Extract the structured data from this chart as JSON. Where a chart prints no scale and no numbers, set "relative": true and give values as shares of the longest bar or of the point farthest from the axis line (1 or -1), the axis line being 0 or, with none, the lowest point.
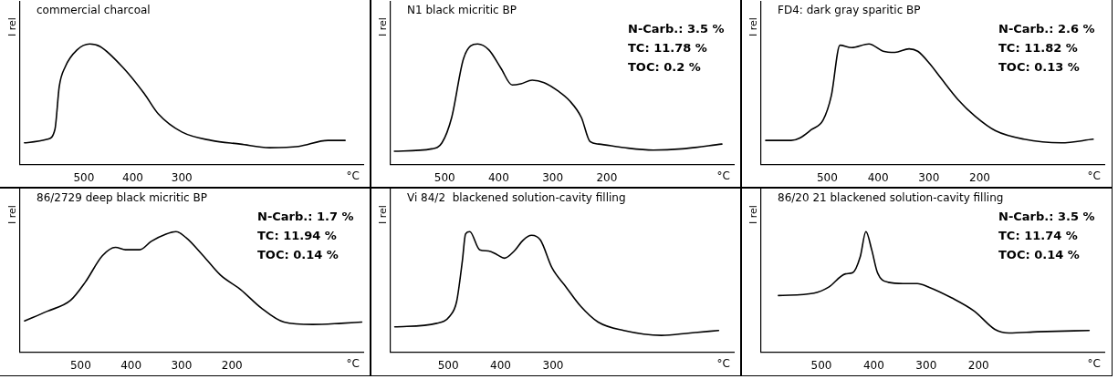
{
  "chart_data": [
    {
      "type": "line",
      "title": "commercial charcoal",
      "ylabel": "I rel",
      "xlabel": "°C",
      "relative": true,
      "xlim": [
        630,
        -70
      ],
      "xticks": [
        500,
        400,
        300
      ],
      "color": "#000000",
      "grid": false,
      "legend": false,
      "marker": "none",
      "x": [
        621,
        574,
        559,
        550,
        538,
        514,
        488,
        467,
        419,
        377,
        348,
        300,
        240,
        181,
        121,
        62,
        2,
        -33
      ],
      "values": [
        0.18,
        0.21,
        0.29,
        0.65,
        0.81,
        0.95,
        1,
        0.98,
        0.8,
        0.59,
        0.42,
        0.27,
        0.2,
        0.17,
        0.14,
        0.15,
        0.2,
        0.2
      ]
    },
    {
      "type": "line",
      "title": "N1 black micritic BP",
      "ylabel": "I rel",
      "xlabel": "°C",
      "relative": true,
      "xlim": [
        600,
        -35
      ],
      "xticks": [
        500,
        400,
        300,
        200
      ],
      "color": "#000000",
      "grid": false,
      "legend": false,
      "marker": "none",
      "annotations": [
        "N-Carb.: 3.5 %",
        "TC: 11.78 %",
        "TOC: 0.2 %"
      ],
      "x": [
        593,
        524,
        505,
        487,
        465,
        439,
        418,
        396,
        375,
        359,
        338,
        316,
        290,
        269,
        247,
        231,
        215,
        168,
        114,
        61,
        -13
      ],
      "values": [
        0.11,
        0.13,
        0.18,
        0.39,
        0.88,
        1,
        0.95,
        0.8,
        0.66,
        0.67,
        0.7,
        0.68,
        0.61,
        0.53,
        0.39,
        0.19,
        0.17,
        0.14,
        0.12,
        0.13,
        0.17
      ]
    },
    {
      "type": "line",
      "title": "FD4: dark gray sparitic BP",
      "ylabel": "I rel",
      "xlabel": "°C",
      "relative": true,
      "xlim": [
        630,
        -45
      ],
      "xticks": [
        500,
        400,
        300,
        200
      ],
      "color": "#000000",
      "grid": false,
      "legend": false,
      "marker": "none",
      "annotations": [
        "N-Carb.: 2.6 %",
        "TC: 11.82 %",
        "TOC: 0.13 %"
      ],
      "x": [
        621,
        571,
        554,
        531,
        508,
        492,
        475,
        452,
        418,
        390,
        367,
        339,
        322,
        299,
        277,
        243,
        209,
        169,
        113,
        40,
        -23
      ],
      "values": [
        0.2,
        0.2,
        0.22,
        0.29,
        0.37,
        0.57,
        0.99,
        0.97,
        1,
        0.94,
        0.93,
        0.96,
        0.94,
        0.84,
        0.72,
        0.54,
        0.4,
        0.28,
        0.21,
        0.18,
        0.21
      ]
    },
    {
      "type": "line",
      "title": "86/2729 deep black micritic BP",
      "ylabel": "I rel",
      "xlabel": "°C",
      "relative": true,
      "xlim": [
        620,
        -60
      ],
      "xticks": [
        500,
        400,
        300,
        200
      ],
      "color": "#000000",
      "grid": false,
      "legend": false,
      "marker": "none",
      "annotations": [
        "N-Carb.: 1.7 %",
        "TC: 11.94 %",
        "TOC: 0.14 %"
      ],
      "x": [
        611,
        566,
        520,
        491,
        457,
        431,
        411,
        383,
        360,
        331,
        311,
        291,
        257,
        223,
        183,
        143,
        97,
        40,
        -17,
        -57
      ],
      "values": [
        0.26,
        0.34,
        0.43,
        0.58,
        0.8,
        0.87,
        0.85,
        0.85,
        0.92,
        0.98,
        1,
        0.95,
        0.8,
        0.64,
        0.52,
        0.37,
        0.25,
        0.23,
        0.24,
        0.25
      ]
    },
    {
      "type": "line",
      "title": "Vi 84/2  blackened solution-cavity filling",
      "ylabel": "I rel",
      "xlabel": "°C",
      "relative": true,
      "xlim": [
        610,
        -45
      ],
      "xticks": [
        500,
        400,
        300
      ],
      "color": "#000000",
      "grid": false,
      "legend": false,
      "marker": "none",
      "x": [
        602,
        522,
        497,
        484,
        473,
        467,
        459,
        440,
        423,
        407,
        393,
        374,
        357,
        341,
        324,
        302,
        275,
        247,
        214,
        165,
        93,
        38,
        -16
      ],
      "values": [
        0.21,
        0.24,
        0.3,
        0.42,
        0.76,
        0.98,
        1,
        0.85,
        0.84,
        0.81,
        0.78,
        0.84,
        0.93,
        0.97,
        0.93,
        0.7,
        0.54,
        0.38,
        0.25,
        0.18,
        0.14,
        0.16,
        0.18
      ]
    },
    {
      "type": "line",
      "title": "86/20 21 blackened solution-cavity filling",
      "ylabel": "I rel",
      "xlabel": "°C",
      "relative": true,
      "xlim": [
        615,
        -40
      ],
      "xticks": [
        500,
        400,
        300,
        200
      ],
      "color": "#000000",
      "grid": false,
      "legend": false,
      "marker": "none",
      "annotations": [
        "N-Carb.: 3.5 %",
        "TC: 11.74 %",
        "TOC: 0.14 %"
      ],
      "x": [
        582,
        514,
        486,
        454,
        440,
        426,
        415,
        404,
        393,
        372,
        344,
        317,
        295,
        251,
        208,
        169,
        142,
        87,
        -11
      ],
      "values": [
        0.47,
        0.49,
        0.54,
        0.65,
        0.66,
        0.79,
        1,
        0.85,
        0.66,
        0.58,
        0.57,
        0.57,
        0.54,
        0.45,
        0.34,
        0.19,
        0.16,
        0.17,
        0.18
      ]
    }
  ]
}
